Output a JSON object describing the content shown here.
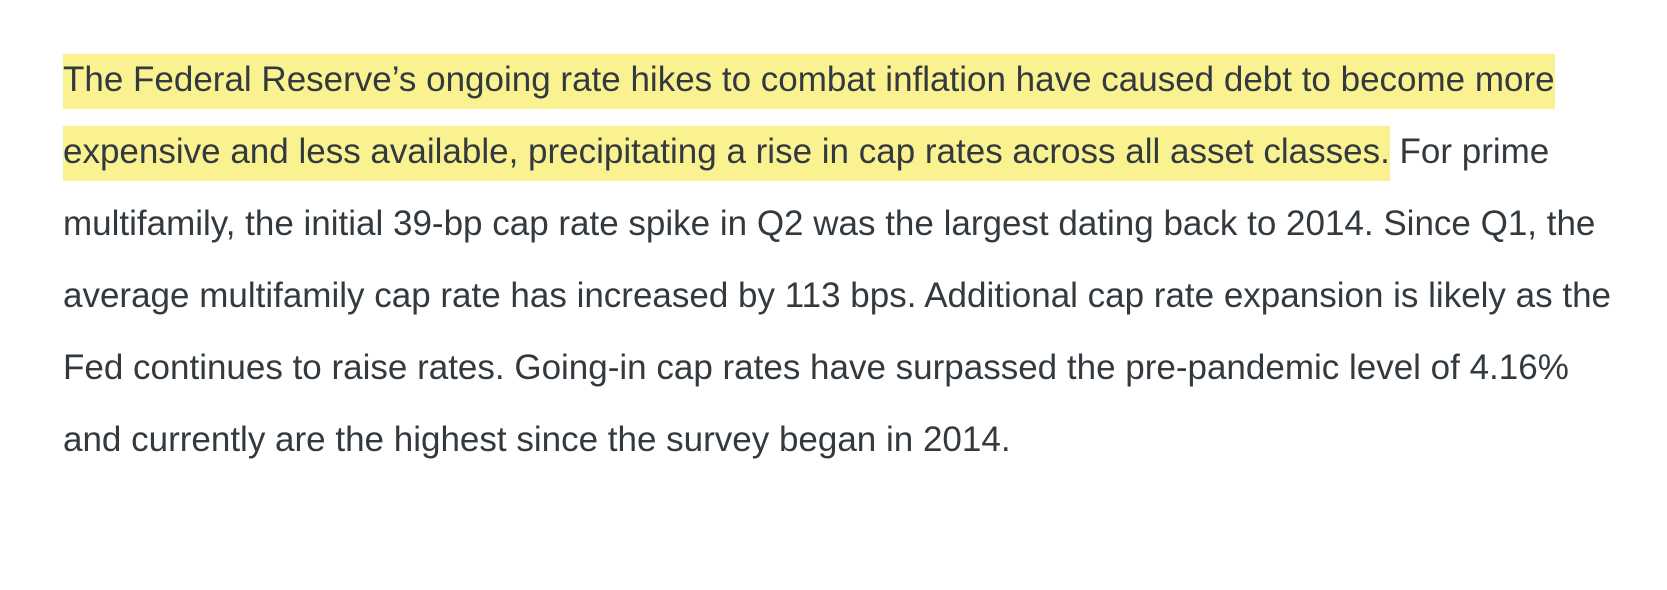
{
  "paragraph": {
    "highlighted": "The Federal Reserve’s ongoing rate hikes to combat inflation have caused debt to become more expensive and less available, precipitating a rise in cap rates across all asset classes.",
    "rest": " For prime multifamily, the initial 39-bp cap rate spike in Q2 was the largest dating back to 2014. Since Q1, the average multifamily cap rate has increased by 113 bps. Additional cap rate expansion is likely as the Fed continues to raise rates. Going-in cap rates have surpassed the pre-pandemic level of 4.16% and currently are the highest since the survey began in 2014."
  },
  "colors": {
    "text": "#333a3f",
    "highlight": "#faf291",
    "background": "#ffffff"
  }
}
